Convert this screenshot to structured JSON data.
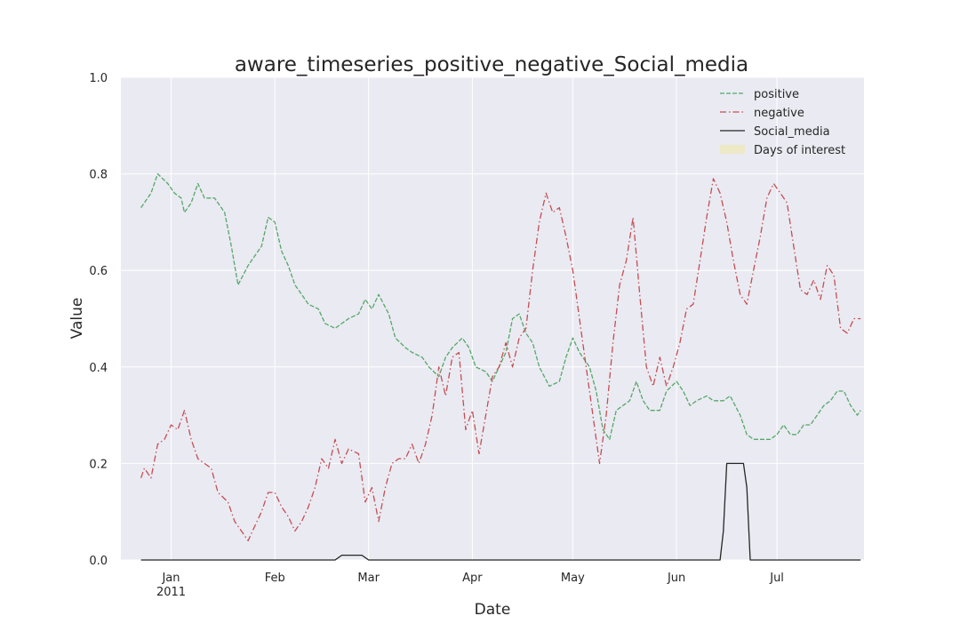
{
  "chart_data": {
    "type": "line",
    "title": "aware_timeseries_positive_negative_Social_media",
    "xlabel": "Date",
    "ylabel": "Value",
    "xlim": [
      "2010-12-17",
      "2011-07-27"
    ],
    "ylim": [
      0,
      1.0
    ],
    "yticks": [
      "0.0",
      "0.2",
      "0.4",
      "0.6",
      "0.8",
      "1.0"
    ],
    "xticks": [
      {
        "date": "2011-01-01",
        "label": "Jan",
        "sublabel": "2011"
      },
      {
        "date": "2011-02-01",
        "label": "Feb",
        "sublabel": ""
      },
      {
        "date": "2011-03-01",
        "label": "Mar",
        "sublabel": ""
      },
      {
        "date": "2011-04-01",
        "label": "Apr",
        "sublabel": ""
      },
      {
        "date": "2011-05-01",
        "label": "May",
        "sublabel": ""
      },
      {
        "date": "2011-06-01",
        "label": "Jun",
        "sublabel": ""
      },
      {
        "date": "2011-07-01",
        "label": "Jul",
        "sublabel": ""
      }
    ],
    "grid": true,
    "legend_position": "top-right",
    "legend": [
      "positive",
      "negative",
      "Social_media",
      "Days of interest"
    ],
    "series": [
      {
        "name": "positive",
        "color": "#55a868",
        "style": "dashed",
        "points": [
          [
            "2010-12-23",
            0.73
          ],
          [
            "2010-12-26",
            0.76
          ],
          [
            "2010-12-28",
            0.8
          ],
          [
            "2010-12-31",
            0.78
          ],
          [
            "2011-01-02",
            0.76
          ],
          [
            "2011-01-04",
            0.75
          ],
          [
            "2011-01-05",
            0.72
          ],
          [
            "2011-01-07",
            0.74
          ],
          [
            "2011-01-09",
            0.78
          ],
          [
            "2011-01-11",
            0.75
          ],
          [
            "2011-01-14",
            0.75
          ],
          [
            "2011-01-17",
            0.72
          ],
          [
            "2011-01-19",
            0.65
          ],
          [
            "2011-01-21",
            0.57
          ],
          [
            "2011-01-24",
            0.61
          ],
          [
            "2011-01-26",
            0.63
          ],
          [
            "2011-01-28",
            0.65
          ],
          [
            "2011-01-30",
            0.71
          ],
          [
            "2011-02-01",
            0.7
          ],
          [
            "2011-02-03",
            0.64
          ],
          [
            "2011-02-05",
            0.61
          ],
          [
            "2011-02-07",
            0.57
          ],
          [
            "2011-02-09",
            0.55
          ],
          [
            "2011-02-11",
            0.53
          ],
          [
            "2011-02-14",
            0.52
          ],
          [
            "2011-02-16",
            0.49
          ],
          [
            "2011-02-19",
            0.48
          ],
          [
            "2011-02-21",
            0.49
          ],
          [
            "2011-02-23",
            0.5
          ],
          [
            "2011-02-26",
            0.51
          ],
          [
            "2011-02-28",
            0.54
          ],
          [
            "2011-03-02",
            0.52
          ],
          [
            "2011-03-04",
            0.55
          ],
          [
            "2011-03-07",
            0.51
          ],
          [
            "2011-03-09",
            0.46
          ],
          [
            "2011-03-12",
            0.44
          ],
          [
            "2011-03-14",
            0.43
          ],
          [
            "2011-03-17",
            0.42
          ],
          [
            "2011-03-19",
            0.4
          ],
          [
            "2011-03-22",
            0.38
          ],
          [
            "2011-03-24",
            0.42
          ],
          [
            "2011-03-26",
            0.44
          ],
          [
            "2011-03-29",
            0.46
          ],
          [
            "2011-03-31",
            0.44
          ],
          [
            "2011-04-02",
            0.4
          ],
          [
            "2011-04-05",
            0.39
          ],
          [
            "2011-04-07",
            0.37
          ],
          [
            "2011-04-09",
            0.4
          ],
          [
            "2011-04-11",
            0.43
          ],
          [
            "2011-04-13",
            0.5
          ],
          [
            "2011-04-15",
            0.51
          ],
          [
            "2011-04-17",
            0.47
          ],
          [
            "2011-04-19",
            0.45
          ],
          [
            "2011-04-21",
            0.4
          ],
          [
            "2011-04-24",
            0.36
          ],
          [
            "2011-04-27",
            0.37
          ],
          [
            "2011-04-29",
            0.42
          ],
          [
            "2011-05-01",
            0.46
          ],
          [
            "2011-05-03",
            0.43
          ],
          [
            "2011-05-06",
            0.4
          ],
          [
            "2011-05-08",
            0.35
          ],
          [
            "2011-05-10",
            0.27
          ],
          [
            "2011-05-12",
            0.25
          ],
          [
            "2011-05-14",
            0.31
          ],
          [
            "2011-05-16",
            0.32
          ],
          [
            "2011-05-18",
            0.33
          ],
          [
            "2011-05-20",
            0.37
          ],
          [
            "2011-05-22",
            0.33
          ],
          [
            "2011-05-24",
            0.31
          ],
          [
            "2011-05-27",
            0.31
          ],
          [
            "2011-05-29",
            0.35
          ],
          [
            "2011-06-01",
            0.37
          ],
          [
            "2011-06-03",
            0.35
          ],
          [
            "2011-06-05",
            0.32
          ],
          [
            "2011-06-07",
            0.33
          ],
          [
            "2011-06-10",
            0.34
          ],
          [
            "2011-06-12",
            0.33
          ],
          [
            "2011-06-15",
            0.33
          ],
          [
            "2011-06-17",
            0.34
          ],
          [
            "2011-06-20",
            0.3
          ],
          [
            "2011-06-22",
            0.26
          ],
          [
            "2011-06-24",
            0.25
          ],
          [
            "2011-06-26",
            0.25
          ],
          [
            "2011-06-29",
            0.25
          ],
          [
            "2011-07-01",
            0.26
          ],
          [
            "2011-07-03",
            0.28
          ],
          [
            "2011-07-05",
            0.26
          ],
          [
            "2011-07-07",
            0.26
          ],
          [
            "2011-07-09",
            0.28
          ],
          [
            "2011-07-11",
            0.28
          ],
          [
            "2011-07-13",
            0.3
          ],
          [
            "2011-07-15",
            0.32
          ],
          [
            "2011-07-17",
            0.33
          ],
          [
            "2011-07-19",
            0.35
          ],
          [
            "2011-07-21",
            0.35
          ],
          [
            "2011-07-23",
            0.32
          ],
          [
            "2011-07-25",
            0.3
          ],
          [
            "2011-07-26",
            0.31
          ]
        ]
      },
      {
        "name": "negative",
        "color": "#c44e52",
        "style": "dashdot",
        "points": [
          [
            "2010-12-23",
            0.17
          ],
          [
            "2010-12-24",
            0.19
          ],
          [
            "2010-12-26",
            0.17
          ],
          [
            "2010-12-28",
            0.24
          ],
          [
            "2010-12-30",
            0.25
          ],
          [
            "2011-01-01",
            0.28
          ],
          [
            "2011-01-03",
            0.27
          ],
          [
            "2011-01-05",
            0.31
          ],
          [
            "2011-01-07",
            0.25
          ],
          [
            "2011-01-09",
            0.21
          ],
          [
            "2011-01-11",
            0.2
          ],
          [
            "2011-01-13",
            0.19
          ],
          [
            "2011-01-15",
            0.14
          ],
          [
            "2011-01-18",
            0.12
          ],
          [
            "2011-01-20",
            0.08
          ],
          [
            "2011-01-22",
            0.06
          ],
          [
            "2011-01-24",
            0.04
          ],
          [
            "2011-01-26",
            0.07
          ],
          [
            "2011-01-28",
            0.1
          ],
          [
            "2011-01-30",
            0.14
          ],
          [
            "2011-02-01",
            0.14
          ],
          [
            "2011-02-03",
            0.11
          ],
          [
            "2011-02-05",
            0.09
          ],
          [
            "2011-02-07",
            0.06
          ],
          [
            "2011-02-09",
            0.08
          ],
          [
            "2011-02-11",
            0.11
          ],
          [
            "2011-02-13",
            0.15
          ],
          [
            "2011-02-15",
            0.21
          ],
          [
            "2011-02-17",
            0.19
          ],
          [
            "2011-02-19",
            0.25
          ],
          [
            "2011-02-21",
            0.2
          ],
          [
            "2011-02-23",
            0.23
          ],
          [
            "2011-02-26",
            0.22
          ],
          [
            "2011-02-28",
            0.12
          ],
          [
            "2011-03-02",
            0.15
          ],
          [
            "2011-03-04",
            0.08
          ],
          [
            "2011-03-06",
            0.15
          ],
          [
            "2011-03-08",
            0.2
          ],
          [
            "2011-03-10",
            0.21
          ],
          [
            "2011-03-12",
            0.21
          ],
          [
            "2011-03-14",
            0.24
          ],
          [
            "2011-03-16",
            0.2
          ],
          [
            "2011-03-18",
            0.24
          ],
          [
            "2011-03-20",
            0.3
          ],
          [
            "2011-03-22",
            0.4
          ],
          [
            "2011-03-24",
            0.34
          ],
          [
            "2011-03-26",
            0.42
          ],
          [
            "2011-03-28",
            0.43
          ],
          [
            "2011-03-30",
            0.27
          ],
          [
            "2011-04-01",
            0.31
          ],
          [
            "2011-04-03",
            0.22
          ],
          [
            "2011-04-05",
            0.3
          ],
          [
            "2011-04-07",
            0.38
          ],
          [
            "2011-04-09",
            0.4
          ],
          [
            "2011-04-11",
            0.45
          ],
          [
            "2011-04-13",
            0.4
          ],
          [
            "2011-04-15",
            0.46
          ],
          [
            "2011-04-17",
            0.48
          ],
          [
            "2011-04-19",
            0.6
          ],
          [
            "2011-04-21",
            0.7
          ],
          [
            "2011-04-23",
            0.76
          ],
          [
            "2011-04-25",
            0.72
          ],
          [
            "2011-04-27",
            0.73
          ],
          [
            "2011-04-29",
            0.67
          ],
          [
            "2011-05-01",
            0.6
          ],
          [
            "2011-05-03",
            0.5
          ],
          [
            "2011-05-05",
            0.4
          ],
          [
            "2011-05-07",
            0.3
          ],
          [
            "2011-05-09",
            0.2
          ],
          [
            "2011-05-11",
            0.3
          ],
          [
            "2011-05-13",
            0.45
          ],
          [
            "2011-05-15",
            0.57
          ],
          [
            "2011-05-17",
            0.62
          ],
          [
            "2011-05-19",
            0.71
          ],
          [
            "2011-05-21",
            0.55
          ],
          [
            "2011-05-23",
            0.4
          ],
          [
            "2011-05-25",
            0.36
          ],
          [
            "2011-05-27",
            0.42
          ],
          [
            "2011-05-29",
            0.36
          ],
          [
            "2011-05-31",
            0.4
          ],
          [
            "2011-06-02",
            0.45
          ],
          [
            "2011-06-04",
            0.52
          ],
          [
            "2011-06-06",
            0.53
          ],
          [
            "2011-06-08",
            0.62
          ],
          [
            "2011-06-10",
            0.71
          ],
          [
            "2011-06-12",
            0.79
          ],
          [
            "2011-06-14",
            0.76
          ],
          [
            "2011-06-16",
            0.7
          ],
          [
            "2011-06-18",
            0.62
          ],
          [
            "2011-06-20",
            0.55
          ],
          [
            "2011-06-22",
            0.53
          ],
          [
            "2011-06-24",
            0.6
          ],
          [
            "2011-06-26",
            0.67
          ],
          [
            "2011-06-28",
            0.75
          ],
          [
            "2011-06-30",
            0.78
          ],
          [
            "2011-07-02",
            0.76
          ],
          [
            "2011-07-04",
            0.74
          ],
          [
            "2011-07-06",
            0.65
          ],
          [
            "2011-07-08",
            0.56
          ],
          [
            "2011-07-10",
            0.55
          ],
          [
            "2011-07-12",
            0.58
          ],
          [
            "2011-07-14",
            0.54
          ],
          [
            "2011-07-16",
            0.61
          ],
          [
            "2011-07-18",
            0.59
          ],
          [
            "2011-07-20",
            0.48
          ],
          [
            "2011-07-22",
            0.47
          ],
          [
            "2011-07-24",
            0.5
          ],
          [
            "2011-07-26",
            0.5
          ]
        ]
      },
      {
        "name": "Social_media",
        "color": "#262626",
        "style": "solid",
        "points": [
          [
            "2010-12-23",
            0.0
          ],
          [
            "2011-02-19",
            0.0
          ],
          [
            "2011-02-21",
            0.01
          ],
          [
            "2011-02-27",
            0.01
          ],
          [
            "2011-03-01",
            0.0
          ],
          [
            "2011-06-14",
            0.0
          ],
          [
            "2011-06-15",
            0.06
          ],
          [
            "2011-06-16",
            0.2
          ],
          [
            "2011-06-21",
            0.2
          ],
          [
            "2011-06-22",
            0.15
          ],
          [
            "2011-06-23",
            0.0
          ],
          [
            "2011-07-26",
            0.0
          ]
        ]
      }
    ]
  }
}
